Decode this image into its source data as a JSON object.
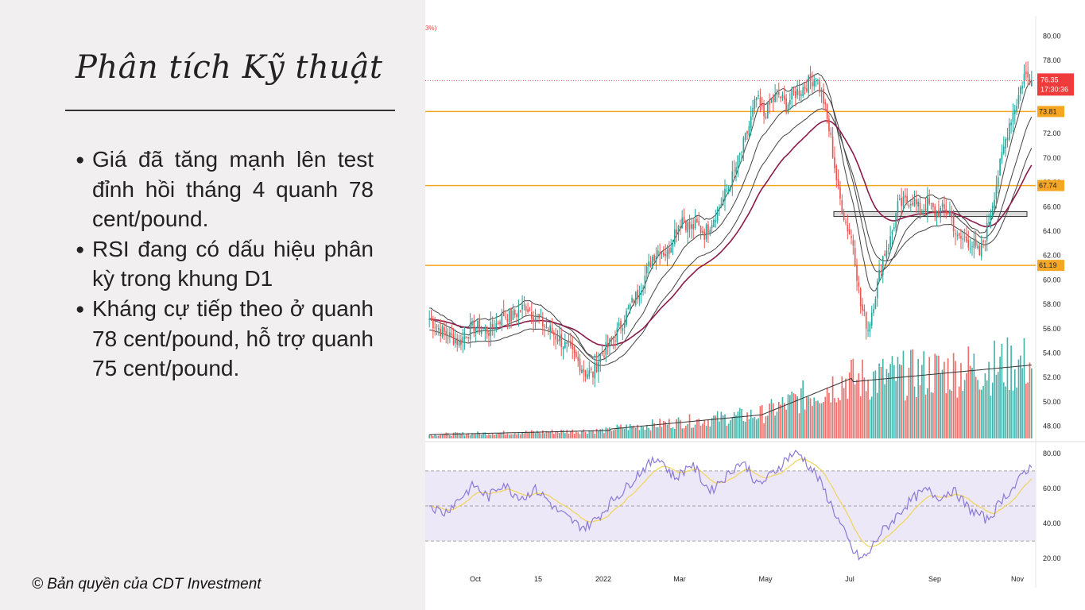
{
  "slide": {
    "title": "Phân tích Kỹ thuật",
    "bullets": [
      "Giá đã tăng mạnh lên test đỉnh hồi tháng 4 quanh 78 cent/pound.",
      "RSI đang có dấu hiệu phân kỳ trong khung D1",
      "Kháng cự tiếp theo ở quanh 78 cent/pound, hỗ trợ quanh 75 cent/pound."
    ],
    "copyright": "© Bản quyền của CDT Investment"
  },
  "colors": {
    "up": "#26a69a",
    "down": "#ef5350",
    "level_line": "#f5a623",
    "ma_slow": "#8b1a4a",
    "ma_fast": "#444444",
    "rsi_line": "#8c78d6",
    "rsi_ma": "#f2d35b",
    "rsi_band": "#ece8f7",
    "price_tag": "#ef3b3b"
  },
  "chart_data": {
    "type": "candlestick",
    "top_note": "3%)",
    "x_ticks": [
      "Oct",
      "15",
      "2022",
      "Mar",
      "May",
      "Jul",
      "Sep",
      "Nov"
    ],
    "price_axis": {
      "ticks": [
        "80.00",
        "78.00",
        "76.00",
        "74.00",
        "72.00",
        "70.00",
        "68.00",
        "66.00",
        "64.00",
        "62.00",
        "60.00",
        "58.00",
        "56.00",
        "54.00",
        "52.00",
        "50.00",
        "48.00"
      ],
      "range": [
        47,
        81
      ]
    },
    "last_price": {
      "value": "76.35",
      "countdown": "17:30:36"
    },
    "levels": [
      {
        "value": 73.81,
        "label": "73.81"
      },
      {
        "value": 67.74,
        "label": "67.74"
      },
      {
        "value": 61.19,
        "label": "61.19"
      }
    ],
    "support_box": {
      "low": 65.2,
      "high": 65.6
    },
    "close_series": [
      56.8,
      56.2,
      55.6,
      55.3,
      54.9,
      55.6,
      56.2,
      56.0,
      55.8,
      56.4,
      57.2,
      56.9,
      57.4,
      57.9,
      57.1,
      56.5,
      56.0,
      55.4,
      54.8,
      54.1,
      53.3,
      52.4,
      52.3,
      53.8,
      54.5,
      55.4,
      56.6,
      57.8,
      58.9,
      60.3,
      61.9,
      62.6,
      62.1,
      64.0,
      65.1,
      64.2,
      64.5,
      63.8,
      64.9,
      66.0,
      67.3,
      68.8,
      70.6,
      72.6,
      74.9,
      73.5,
      74.6,
      75.2,
      74.3,
      75.3,
      75.6,
      76.2,
      76.7,
      74.7,
      71.5,
      67.2,
      64.7,
      63.0,
      57.9,
      56.0,
      58.9,
      61.9,
      63.3,
      66.0,
      66.4,
      66.6,
      65.6,
      66.3,
      65.5,
      65.7,
      65.6,
      63.3,
      63.4,
      62.9,
      62.1,
      64.2,
      67.1,
      70.1,
      72.9,
      74.6,
      76.8,
      76.4
    ],
    "rsi": {
      "ticks": [
        "80.00",
        "60.00",
        "40.00",
        "20.00"
      ],
      "range": [
        16,
        84
      ],
      "levels": [
        70,
        50,
        30
      ],
      "values": [
        51,
        48,
        46,
        50,
        54,
        58,
        62,
        58,
        55,
        60,
        63,
        58,
        56,
        55,
        60,
        57,
        53,
        48,
        45,
        42,
        39,
        38,
        41,
        45,
        50,
        55,
        58,
        63,
        68,
        72,
        75,
        78,
        71,
        66,
        69,
        74,
        70,
        62,
        59,
        64,
        67,
        72,
        75,
        71,
        62,
        64,
        68,
        72,
        77,
        80,
        79,
        73,
        68,
        60,
        51,
        42,
        33,
        24,
        20,
        22,
        30,
        36,
        40,
        45,
        50,
        54,
        57,
        59,
        56,
        55,
        59,
        57,
        51,
        47,
        45,
        42,
        47,
        54,
        58,
        62,
        70,
        72
      ]
    }
  }
}
